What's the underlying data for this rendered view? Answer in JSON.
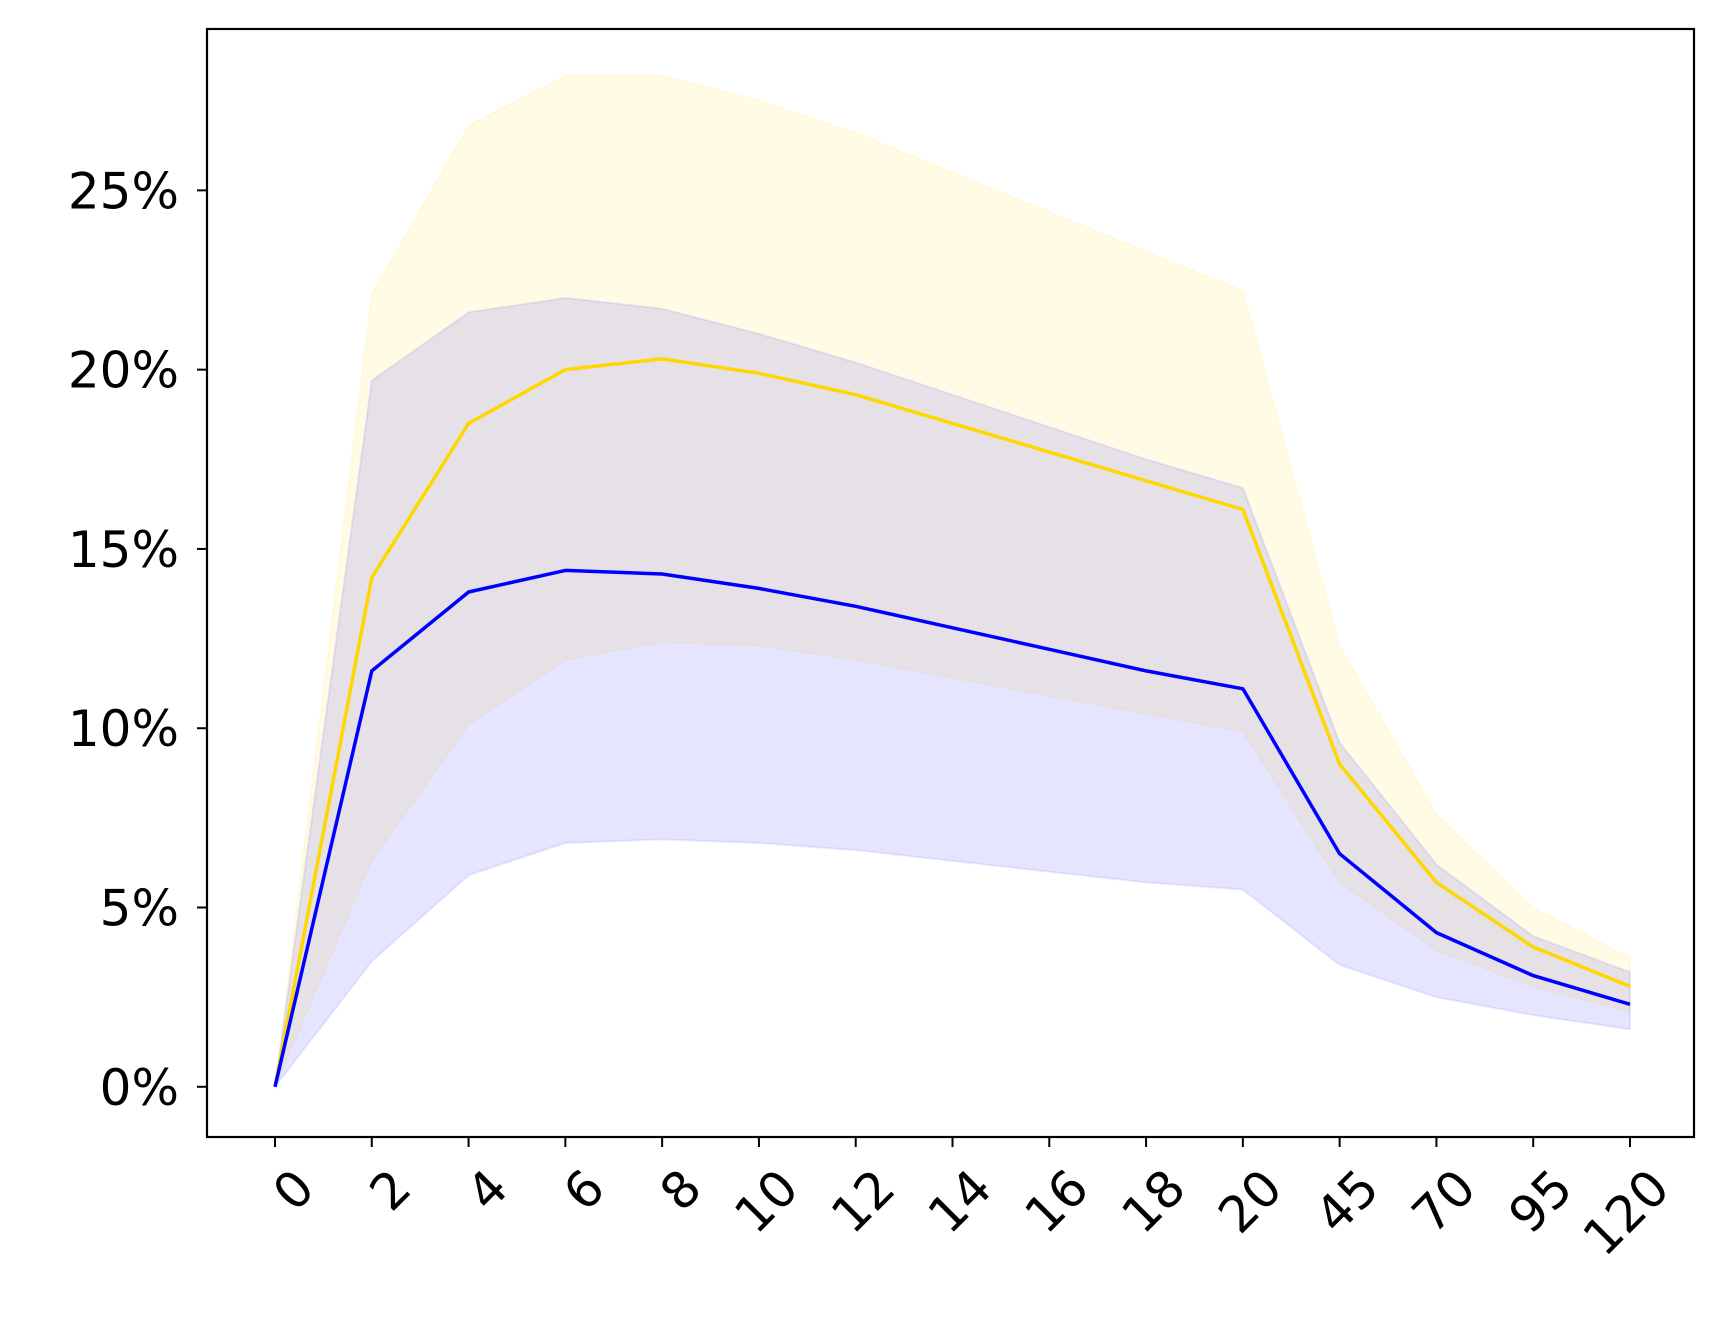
{
  "chart_data": {
    "type": "line",
    "title": "",
    "xlabel": "",
    "ylabel": "",
    "categories": [
      "0",
      "2",
      "4",
      "6",
      "8",
      "10",
      "12",
      "14",
      "16",
      "18",
      "20",
      "45",
      "70",
      "95",
      "120"
    ],
    "ylim": [
      -1.4,
      29.5
    ],
    "yticks": [
      0,
      5,
      10,
      15,
      20,
      25
    ],
    "ytick_labels": [
      "0%",
      "5%",
      "10%",
      "15%",
      "20%",
      "25%"
    ],
    "grid": false,
    "series": [
      {
        "color": "#FFD700",
        "values": [
          0.0,
          14.2,
          18.5,
          20.0,
          20.3,
          19.9,
          19.3,
          18.5,
          17.7,
          16.9,
          16.1,
          9.0,
          5.7,
          3.9,
          2.8
        ],
        "band_upper": [
          0.0,
          22.1,
          26.8,
          28.2,
          28.2,
          27.5,
          26.6,
          25.5,
          24.4,
          23.3,
          22.2,
          12.3,
          7.6,
          5.0,
          3.6
        ],
        "band_lower": [
          0.0,
          6.3,
          10.1,
          11.9,
          12.4,
          12.3,
          11.9,
          11.4,
          10.9,
          10.4,
          9.9,
          5.7,
          3.8,
          2.8,
          2.1
        ]
      },
      {
        "color": "#0000FF",
        "values": [
          0.0,
          11.6,
          13.8,
          14.4,
          14.3,
          13.9,
          13.4,
          12.8,
          12.2,
          11.6,
          11.1,
          6.5,
          4.3,
          3.1,
          2.3
        ],
        "band_upper": [
          0.0,
          19.7,
          21.6,
          22.0,
          21.7,
          21.0,
          20.2,
          19.3,
          18.4,
          17.5,
          16.7,
          9.6,
          6.2,
          4.2,
          3.2
        ],
        "band_lower": [
          0.0,
          3.5,
          5.9,
          6.8,
          6.9,
          6.8,
          6.6,
          6.3,
          6.0,
          5.7,
          5.5,
          3.4,
          2.5,
          2.0,
          1.6
        ]
      }
    ]
  }
}
